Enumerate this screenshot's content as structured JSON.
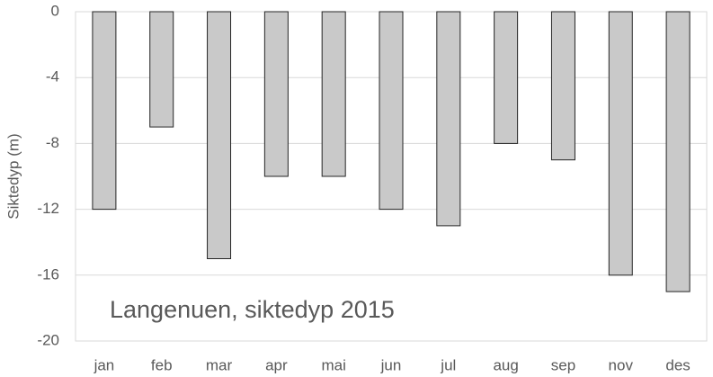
{
  "chart_data": {
    "type": "bar",
    "annotation": "Langenuen, siktedyp 2015",
    "y_label": "Siktedyp (m)",
    "categories": [
      "jan",
      "feb",
      "mar",
      "apr",
      "mai",
      "jun",
      "jul",
      "aug",
      "sep",
      "nov",
      "des"
    ],
    "values": [
      -12,
      -7,
      -15,
      -10,
      -10,
      -12,
      -13,
      -8,
      -9,
      -16,
      -17
    ],
    "color": "#c9c9c9",
    "ylim": [
      -20,
      0
    ],
    "yticks": [
      0,
      -4,
      -8,
      -12,
      -16,
      -20
    ],
    "grid": true
  }
}
